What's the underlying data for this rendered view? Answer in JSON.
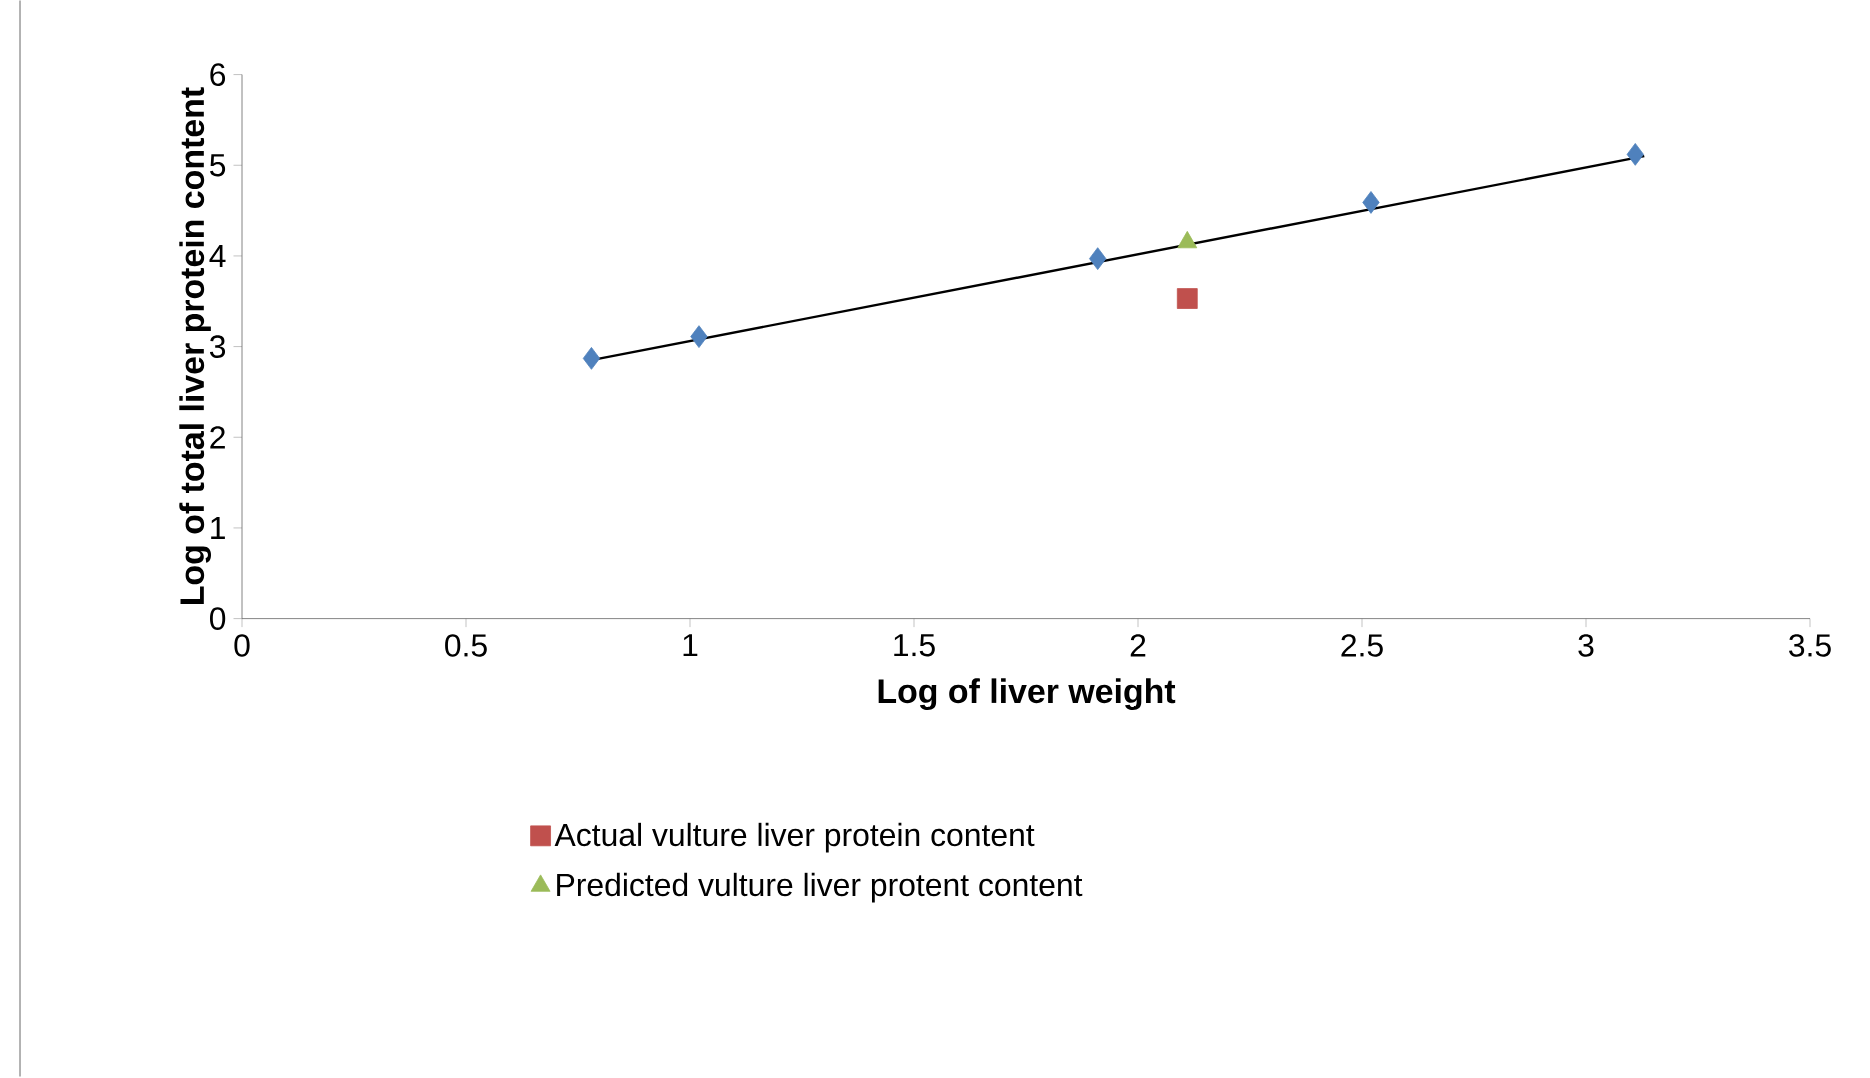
{
  "chart_data": {
    "type": "scatter",
    "xlabel": "Log of liver weight",
    "ylabel": "Log of total liver protein content",
    "xlim": [
      0,
      3.5
    ],
    "xticks": [
      0,
      0.5,
      1,
      1.5,
      2,
      2.5,
      3,
      3.5
    ],
    "ylim": [
      0,
      6
    ],
    "yticks": [
      0,
      1,
      2,
      3,
      4,
      5,
      6
    ],
    "legend": "bottom",
    "grid": false,
    "series": [
      {
        "marker": "diamond",
        "color": "#4f81bd",
        "x": [
          0.78,
          1.02,
          1.91,
          2.52,
          3.11
        ],
        "values": [
          2.87,
          3.11,
          3.97,
          4.59,
          5.12
        ]
      },
      {
        "type": "line",
        "marker": "none",
        "color": "#000000",
        "x": [
          0.78,
          3.13
        ],
        "values": [
          2.85,
          5.1
        ]
      },
      {
        "marker": "square",
        "name": "Actual vulture liver protein content",
        "color": "#c0504d",
        "x": [
          2.11
        ],
        "values": [
          3.53
        ]
      },
      {
        "marker": "triangle",
        "name": "Predicted vulture liver protent content",
        "color": "#9bbb59",
        "x": [
          2.11
        ],
        "values": [
          4.15
        ]
      }
    ]
  }
}
